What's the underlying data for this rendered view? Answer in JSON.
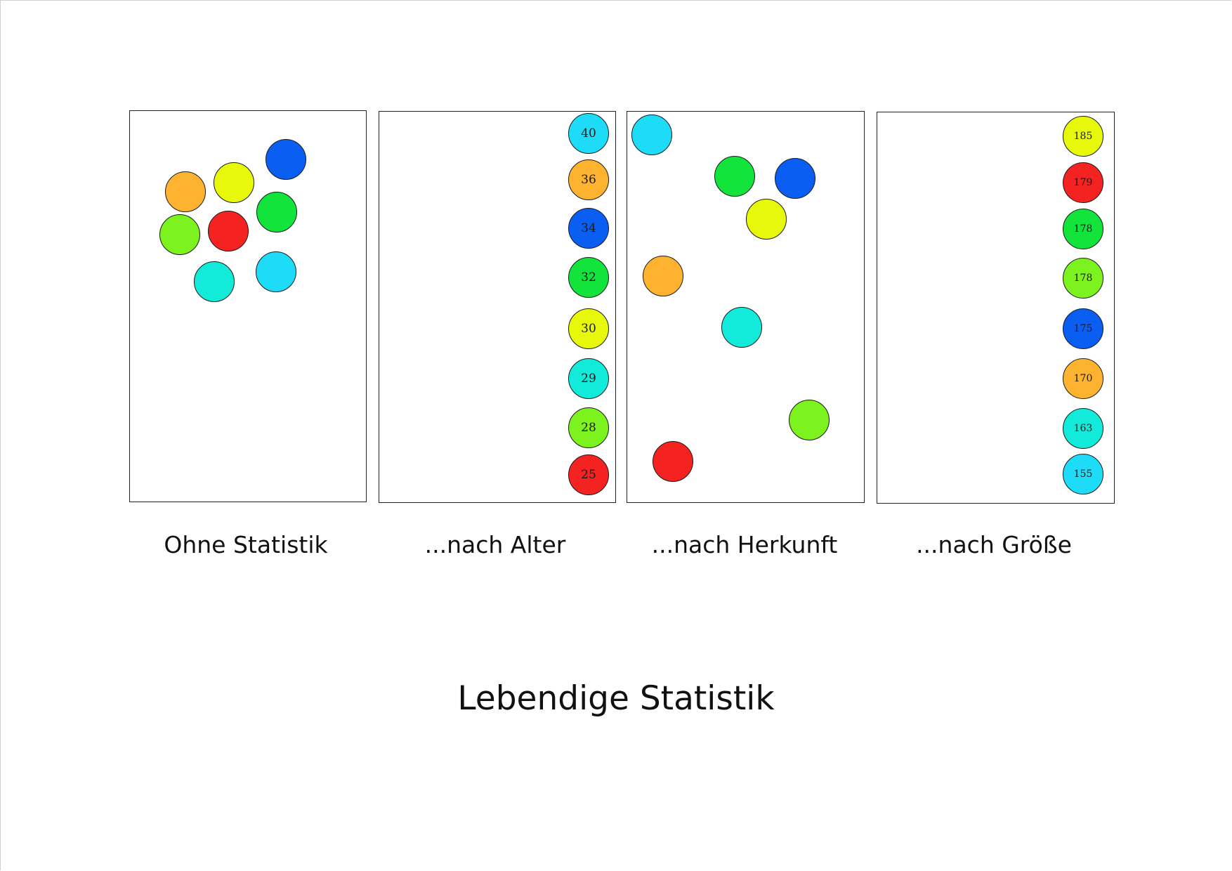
{
  "title": "Lebendige Statistik",
  "colors": {
    "orange": "#FDB32F",
    "yellow": "#E8F80A",
    "blue": "#0A5FF2",
    "green": "#12E43B",
    "lime": "#7CF21E",
    "red": "#F52222",
    "turquoise": "#12EBDA",
    "cyan": "#1EDCF8"
  },
  "panels": [
    {
      "caption": "Ohne Statistik",
      "balls": [
        "orange",
        "yellow",
        "blue",
        "lime",
        "red",
        "green",
        "turquoise",
        "cyan"
      ]
    },
    {
      "caption": "...nach Alter",
      "balls": [
        {
          "color": "cyan",
          "value": "40"
        },
        {
          "color": "orange",
          "value": "36"
        },
        {
          "color": "blue",
          "value": "34"
        },
        {
          "color": "green",
          "value": "32"
        },
        {
          "color": "yellow",
          "value": "30"
        },
        {
          "color": "turquoise",
          "value": "29"
        },
        {
          "color": "lime",
          "value": "28"
        },
        {
          "color": "red",
          "value": "25"
        }
      ]
    },
    {
      "caption": "...nach Herkunft",
      "balls": [
        "cyan",
        "green",
        "blue",
        "yellow",
        "orange",
        "turquoise",
        "lime",
        "red"
      ]
    },
    {
      "caption": "...nach Größe",
      "balls": [
        {
          "color": "yellow",
          "value": "185"
        },
        {
          "color": "red",
          "value": "179"
        },
        {
          "color": "green",
          "value": "178"
        },
        {
          "color": "lime",
          "value": "178"
        },
        {
          "color": "blue",
          "value": "175"
        },
        {
          "color": "orange",
          "value": "170"
        },
        {
          "color": "turquoise",
          "value": "163"
        },
        {
          "color": "cyan",
          "value": "155"
        }
      ]
    }
  ]
}
